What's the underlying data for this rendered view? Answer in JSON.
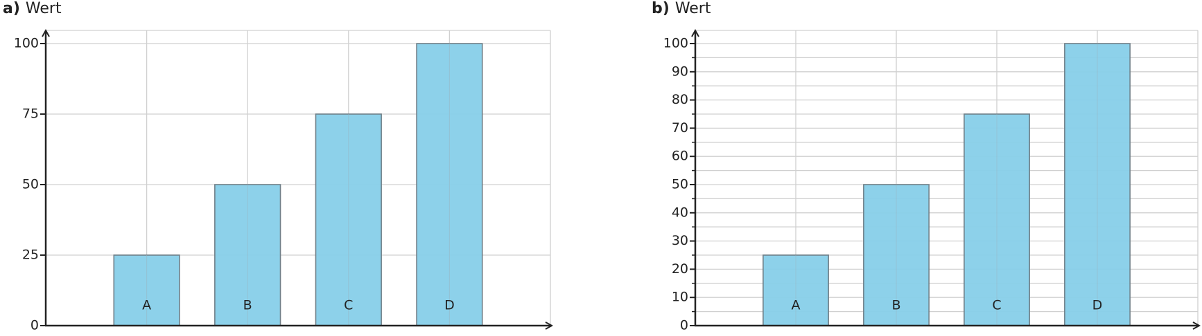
{
  "chart_data": [
    {
      "type": "bar",
      "panel_label": "a)",
      "ylabel": "Wert",
      "categories": [
        "A",
        "B",
        "C",
        "D"
      ],
      "values": [
        25,
        50,
        75,
        100
      ],
      "color": "#87cfe9",
      "ylim": [
        0,
        100
      ],
      "yticks": [
        0,
        25,
        50,
        75,
        100
      ],
      "grid": true
    },
    {
      "type": "bar",
      "panel_label": "b)",
      "ylabel": "Wert",
      "categories": [
        "A",
        "B",
        "C",
        "D"
      ],
      "values": [
        25,
        50,
        75,
        100
      ],
      "color": "#87cfe9",
      "ylim": [
        0,
        100
      ],
      "yticks": [
        0,
        10,
        20,
        30,
        40,
        50,
        60,
        70,
        80,
        90,
        100
      ],
      "minor_yticks": [
        5,
        15,
        25,
        35,
        45,
        55,
        65,
        75,
        85,
        95
      ],
      "grid": true
    }
  ]
}
